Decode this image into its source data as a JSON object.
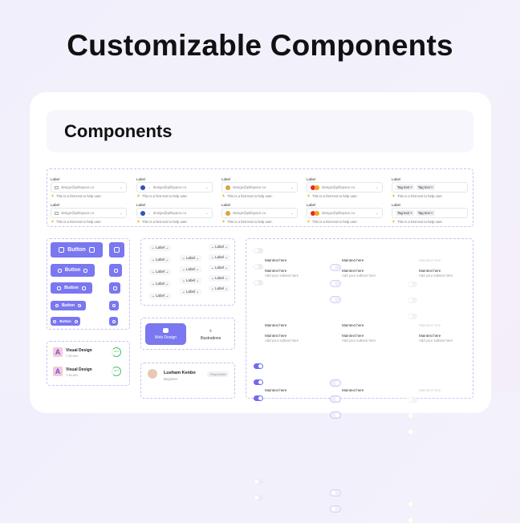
{
  "page": {
    "title": "Customizable Components"
  },
  "card": {
    "heading": "Components"
  },
  "inputs": {
    "label": "Label",
    "value": "design@pillspace.co",
    "hint": "This is a hint text to help user.",
    "tags": [
      "Tag text",
      "Tag text"
    ],
    "columns": [
      "mail-icon",
      "globe-flag-icon",
      "avatar-icon",
      "mastercard-icon",
      "tags"
    ]
  },
  "buttons": {
    "label": "Button",
    "accent": "#7a77f0"
  },
  "chips": {
    "label": "Label"
  },
  "tabs": [
    {
      "label": "Web Design",
      "active": true,
      "icon": "browser-icon"
    },
    {
      "label": "Illustrations",
      "active": false,
      "icon": "pen-nib-icon"
    }
  ],
  "list": [
    {
      "title": "Visual Design",
      "time": "7:30 AM",
      "progress": "60%"
    },
    {
      "title": "Visual Design",
      "time": "7:30 AM",
      "progress": "60%"
    }
  ],
  "profile": {
    "name": "Lusham Kenbo",
    "role": "Beginner",
    "badge": "Requested"
  },
  "toggles": {
    "main": "Maintext here",
    "sub": "Add your subtext here"
  }
}
